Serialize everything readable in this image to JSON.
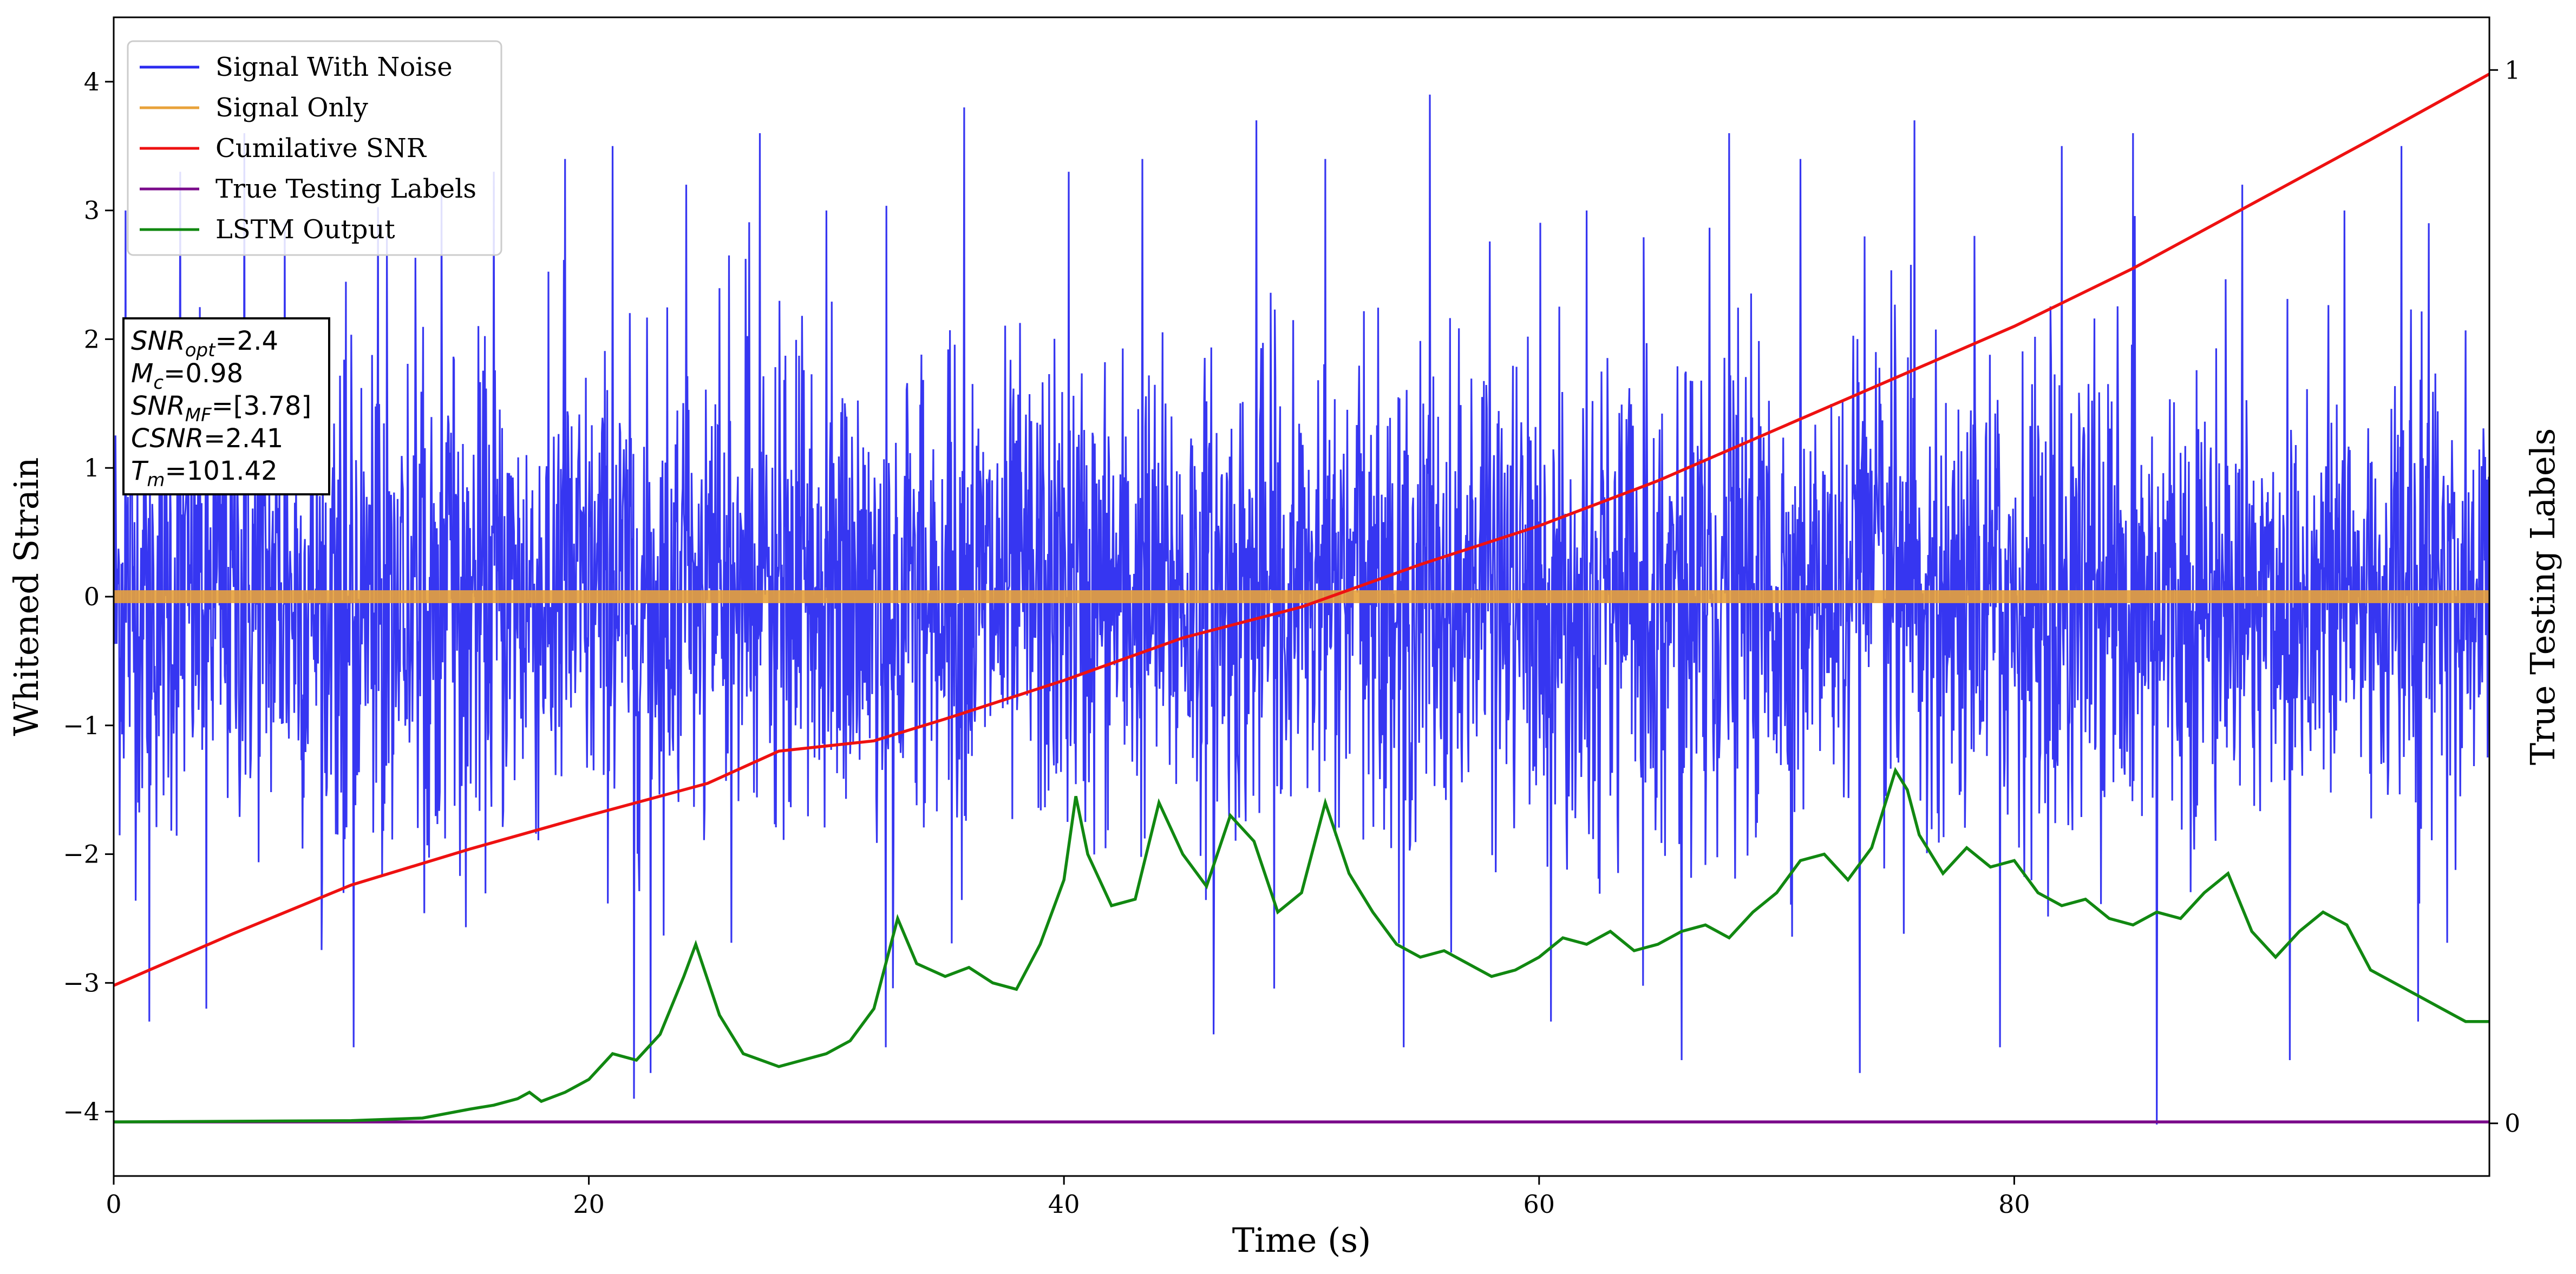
{
  "chart_data": {
    "type": "line",
    "xlabel": "Time (s)",
    "ylabel_left": "Whitened Strain",
    "ylabel_right": "True Testing Labels",
    "xlim": [
      0,
      100
    ],
    "ylim_left": [
      -4.5,
      4.5
    ],
    "ylim_right": [
      -0.05,
      1.05
    ],
    "x_ticks": [
      0,
      20,
      40,
      60,
      80
    ],
    "y_ticks_left": [
      -4,
      -3,
      -2,
      -1,
      0,
      1,
      2,
      3,
      4
    ],
    "y_ticks_right": [
      0,
      1
    ],
    "grid": false,
    "legend_position": "top-left",
    "legend": [
      "Signal With Noise",
      "Signal Only",
      "Cumilative SNR",
      "True Testing Labels",
      "LSTM Output"
    ],
    "colors": {
      "signal_with_noise": "#2b2bf0",
      "signal_only": "#e8a23a",
      "cumulative_snr": "#ee1111",
      "true_testing_labels": "#7a0a8a",
      "lstm_output": "#118811"
    },
    "signal_with_noise": {
      "description_range": [
        -4.1,
        3.9
      ],
      "spikes": [
        [
          0.5,
          3.0
        ],
        [
          1.5,
          -3.3
        ],
        [
          2.8,
          3.3
        ],
        [
          3.9,
          -3.2
        ],
        [
          5.5,
          3.6
        ],
        [
          7.2,
          2.9
        ],
        [
          10.1,
          -3.5
        ],
        [
          11.5,
          2.8
        ],
        [
          13.8,
          3.2
        ],
        [
          16.0,
          3.3
        ],
        [
          19.0,
          3.4
        ],
        [
          21.0,
          3.5
        ],
        [
          21.9,
          -3.9
        ],
        [
          22.6,
          -3.7
        ],
        [
          24.1,
          3.2
        ],
        [
          27.2,
          3.6
        ],
        [
          30.0,
          3.0
        ],
        [
          32.5,
          -3.5
        ],
        [
          35.8,
          3.8
        ],
        [
          40.2,
          3.3
        ],
        [
          43.3,
          3.4
        ],
        [
          46.3,
          -3.4
        ],
        [
          48.1,
          3.7
        ],
        [
          51.0,
          3.4
        ],
        [
          54.3,
          -3.5
        ],
        [
          55.4,
          3.9
        ],
        [
          60.5,
          -3.3
        ],
        [
          62.0,
          3.0
        ],
        [
          66.0,
          -3.6
        ],
        [
          68.0,
          3.6
        ],
        [
          71.0,
          3.4
        ],
        [
          73.5,
          -3.7
        ],
        [
          75.8,
          3.7
        ],
        [
          79.4,
          -3.5
        ],
        [
          82.0,
          3.5
        ],
        [
          85.0,
          3.6
        ],
        [
          86.0,
          -4.1
        ],
        [
          89.6,
          3.2
        ],
        [
          91.6,
          -3.6
        ],
        [
          93.9,
          3.0
        ],
        [
          96.3,
          3.5
        ],
        [
          97.0,
          -3.3
        ]
      ]
    },
    "signal_only": {
      "amplitude": 0.05
    },
    "cumulative_snr": {
      "x": [
        0,
        5,
        10,
        15,
        20,
        25,
        28,
        32,
        35,
        40,
        45,
        50,
        55,
        60,
        65,
        70,
        75,
        80,
        85,
        90,
        95,
        100
      ],
      "y": [
        -3.02,
        -2.62,
        -2.24,
        -1.96,
        -1.7,
        -1.45,
        -1.2,
        -1.12,
        -0.95,
        -0.65,
        -0.32,
        -0.08,
        0.25,
        0.55,
        0.9,
        1.3,
        1.7,
        2.1,
        2.55,
        3.05,
        3.55,
        4.06
      ]
    },
    "true_testing_labels": {
      "x": [
        0,
        100
      ],
      "y": [
        -4.08,
        -4.08
      ]
    },
    "lstm_output": {
      "x": [
        0,
        10,
        13,
        15,
        16,
        17,
        17.5,
        18,
        19,
        20,
        21,
        22,
        23,
        24,
        24.5,
        25.5,
        26.5,
        28,
        29,
        30,
        31,
        32,
        33,
        33.8,
        35,
        36,
        37,
        38,
        39,
        40,
        40.5,
        41,
        42,
        43,
        44,
        45,
        46,
        47,
        48,
        49,
        50,
        51,
        52,
        53,
        54,
        55,
        56,
        57,
        58,
        59,
        60,
        61,
        62,
        63,
        64,
        65,
        66,
        67,
        68,
        69,
        70,
        71,
        72,
        73,
        74,
        75,
        75.5,
        76,
        77,
        78,
        79,
        80,
        81,
        82,
        83,
        84,
        85,
        86,
        87,
        88,
        89,
        90,
        91,
        92,
        93,
        94,
        95,
        96,
        97,
        98,
        99,
        100
      ],
      "y": [
        -4.08,
        -4.07,
        -4.05,
        -3.98,
        -3.95,
        -3.9,
        -3.85,
        -3.92,
        -3.85,
        -3.75,
        -3.55,
        -3.6,
        -3.4,
        -2.95,
        -2.7,
        -3.25,
        -3.55,
        -3.65,
        -3.6,
        -3.55,
        -3.45,
        -3.2,
        -2.5,
        -2.85,
        -2.95,
        -2.88,
        -3.0,
        -3.05,
        -2.7,
        -2.2,
        -1.55,
        -2.0,
        -2.4,
        -2.35,
        -1.6,
        -2.0,
        -2.25,
        -1.7,
        -1.9,
        -2.45,
        -2.3,
        -1.6,
        -2.15,
        -2.45,
        -2.7,
        -2.8,
        -2.75,
        -2.85,
        -2.95,
        -2.9,
        -2.8,
        -2.65,
        -2.7,
        -2.6,
        -2.75,
        -2.7,
        -2.6,
        -2.55,
        -2.65,
        -2.45,
        -2.3,
        -2.05,
        -2.0,
        -2.2,
        -1.95,
        -1.35,
        -1.5,
        -1.85,
        -2.15,
        -1.95,
        -2.1,
        -2.05,
        -2.3,
        -2.4,
        -2.35,
        -2.5,
        -2.55,
        -2.45,
        -2.5,
        -2.3,
        -2.15,
        -2.6,
        -2.8,
        -2.6,
        -2.45,
        -2.55,
        -2.9,
        -3.0,
        -3.1,
        -3.2,
        -3.3,
        -3.3
      ]
    },
    "info_box": [
      {
        "name": "SNR",
        "sub": "opt",
        "value": "=2.4"
      },
      {
        "name": "M",
        "sub": "c",
        "value": "=0.98"
      },
      {
        "name": "SNR",
        "sub": "MF",
        "value": "=[3.78]"
      },
      {
        "name": "CSNR",
        "sub": "",
        "value": "=2.41"
      },
      {
        "name": "T",
        "sub": "m",
        "value": "=101.42"
      }
    ]
  }
}
